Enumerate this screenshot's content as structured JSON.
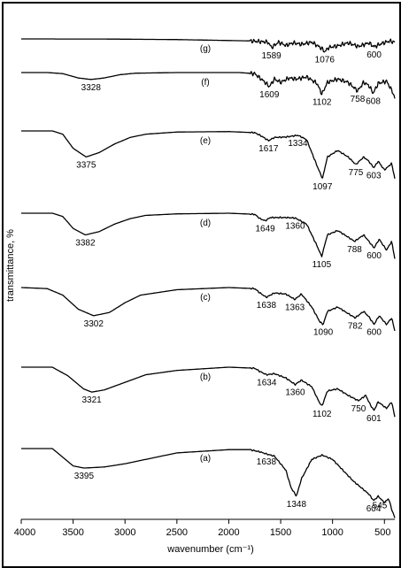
{
  "chart_data": {
    "type": "line",
    "xlabel": "wavenumber (cm⁻¹)",
    "ylabel": "transmittance, %",
    "xlim": [
      4000,
      400
    ],
    "x_reversed": true,
    "x_ticks": [
      4000,
      3500,
      3000,
      2500,
      2000,
      1500,
      1000,
      500
    ],
    "grid": false,
    "line_color": "#000000",
    "series": [
      {
        "name": "(g)",
        "x": [
          4000,
          3200,
          2500,
          1800,
          1620,
          1589,
          1520,
          1450,
          1380,
          1300,
          1200,
          1150,
          1100,
          1076,
          1040,
          950,
          850,
          750,
          650,
          600,
          520,
          450,
          400
        ],
        "y": [
          0.0,
          0.05,
          0.3,
          0.9,
          1.5,
          4.0,
          1.5,
          3.0,
          1.8,
          2.5,
          1.5,
          3.0,
          4.5,
          6.0,
          4.0,
          3.2,
          1.8,
          3.5,
          1.8,
          3.6,
          2.0,
          1.0,
          1.5
        ],
        "annotations": [
          1589,
          1076,
          600
        ]
      },
      {
        "name": "(f)",
        "x": [
          4000,
          3750,
          3600,
          3450,
          3328,
          3200,
          3050,
          2900,
          2500,
          1900,
          1750,
          1700,
          1650,
          1609,
          1560,
          1500,
          1420,
          1350,
          1250,
          1150,
          1102,
          1050,
          950,
          850,
          758,
          700,
          650,
          608,
          560,
          480,
          420,
          400
        ],
        "y": [
          0.0,
          0.0,
          0.5,
          2.5,
          3.2,
          2.5,
          1.0,
          0.3,
          0.0,
          0.0,
          0.5,
          2.5,
          4.5,
          6.5,
          3.0,
          4.5,
          2.5,
          3.0,
          2.0,
          5.0,
          10.0,
          4.5,
          3.0,
          4.5,
          8.5,
          4.5,
          6.0,
          9.5,
          5.0,
          4.0,
          9.0,
          12.0
        ],
        "annotations": [
          3328,
          1609,
          1102,
          758,
          608
        ]
      },
      {
        "name": "(e)",
        "x": [
          4000,
          3700,
          3600,
          3500,
          3375,
          3250,
          3100,
          2950,
          2800,
          2500,
          2000,
          1750,
          1680,
          1617,
          1560,
          1450,
          1334,
          1250,
          1150,
          1097,
          1050,
          950,
          850,
          775,
          700,
          650,
          603,
          560,
          500,
          430,
          400
        ],
        "y": [
          0.0,
          0.0,
          1.5,
          8.0,
          12.0,
          10.0,
          6.0,
          3.0,
          1.5,
          0.5,
          0.3,
          0.8,
          2.5,
          4.5,
          3.0,
          2.8,
          2.0,
          4.0,
          16.0,
          22.0,
          12.0,
          9.0,
          12.0,
          15.5,
          12.0,
          14.0,
          17.0,
          14.0,
          18.0,
          15.0,
          22.0
        ],
        "annotations": [
          3375,
          1617,
          1334,
          1097,
          775,
          603
        ]
      },
      {
        "name": "(d)",
        "x": [
          4000,
          3700,
          3600,
          3500,
          3382,
          3250,
          3100,
          2950,
          2800,
          2500,
          2000,
          1750,
          1700,
          1649,
          1600,
          1450,
          1360,
          1250,
          1150,
          1105,
          1050,
          950,
          850,
          788,
          700,
          650,
          600,
          550,
          480,
          430,
          400
        ],
        "y": [
          0.0,
          0.0,
          1.5,
          7.0,
          10.0,
          8.5,
          5.0,
          2.5,
          1.0,
          0.3,
          0.0,
          0.5,
          2.5,
          3.5,
          2.0,
          2.0,
          2.2,
          5.0,
          15.0,
          20.0,
          10.0,
          8.0,
          11.0,
          13.0,
          10.0,
          13.0,
          16.0,
          12.0,
          17.0,
          13.0,
          21.0
        ],
        "annotations": [
          3382,
          1649,
          1360,
          1105,
          788,
          600
        ]
      },
      {
        "name": "(c)",
        "x": [
          4000,
          3750,
          3600,
          3450,
          3302,
          3150,
          3000,
          2850,
          2500,
          2000,
          1750,
          1700,
          1638,
          1560,
          1450,
          1363,
          1300,
          1200,
          1120,
          1090,
          1050,
          950,
          850,
          782,
          700,
          650,
          600,
          550,
          480,
          430,
          400
        ],
        "y": [
          0.0,
          0.5,
          3.5,
          10.0,
          13.0,
          11.5,
          7.0,
          3.5,
          1.0,
          0.0,
          0.5,
          2.5,
          4.5,
          2.5,
          3.0,
          5.5,
          3.0,
          9.0,
          16.0,
          17.0,
          11.0,
          9.0,
          12.0,
          14.0,
          11.0,
          13.5,
          17.0,
          13.0,
          17.0,
          14.0,
          20.0
        ],
        "annotations": [
          3302,
          1638,
          1363,
          1090,
          782,
          600
        ]
      },
      {
        "name": "(b)",
        "x": [
          4000,
          3700,
          3550,
          3400,
          3321,
          3200,
          3000,
          2800,
          2500,
          2000,
          1750,
          1700,
          1634,
          1560,
          1450,
          1360,
          1300,
          1200,
          1130,
          1102,
          1050,
          950,
          850,
          750,
          680,
          640,
          601,
          560,
          480,
          430,
          400
        ],
        "y": [
          0.0,
          0.0,
          4.0,
          10.0,
          11.5,
          10.5,
          7.0,
          3.5,
          1.5,
          0.0,
          0.5,
          2.0,
          3.5,
          3.0,
          5.0,
          8.0,
          6.0,
          9.0,
          16.0,
          18.0,
          11.0,
          10.0,
          13.0,
          15.5,
          13.0,
          17.0,
          20.0,
          16.0,
          19.0,
          16.0,
          23.0
        ],
        "annotations": [
          3321,
          1634,
          1360,
          1102,
          750,
          601
        ]
      },
      {
        "name": "(a)",
        "x": [
          4000,
          3700,
          3600,
          3500,
          3395,
          3200,
          3000,
          2700,
          2500,
          2000,
          1800,
          1700,
          1638,
          1560,
          1450,
          1400,
          1348,
          1300,
          1200,
          1100,
          1000,
          900,
          800,
          700,
          650,
          604,
          560,
          500,
          460,
          430,
          400
        ],
        "y": [
          0.0,
          0.0,
          4.0,
          8.0,
          9.0,
          8.5,
          7.0,
          4.0,
          2.0,
          0.5,
          0.5,
          1.5,
          2.5,
          3.5,
          10.0,
          18.0,
          22.0,
          14.0,
          5.0,
          3.0,
          5.0,
          10.0,
          15.0,
          19.0,
          21.0,
          24.0,
          22.0,
          25.0,
          23.0,
          28.0,
          32.0
        ],
        "annotations": [
          3395,
          1638,
          1348,
          604,
          545
        ]
      }
    ]
  }
}
